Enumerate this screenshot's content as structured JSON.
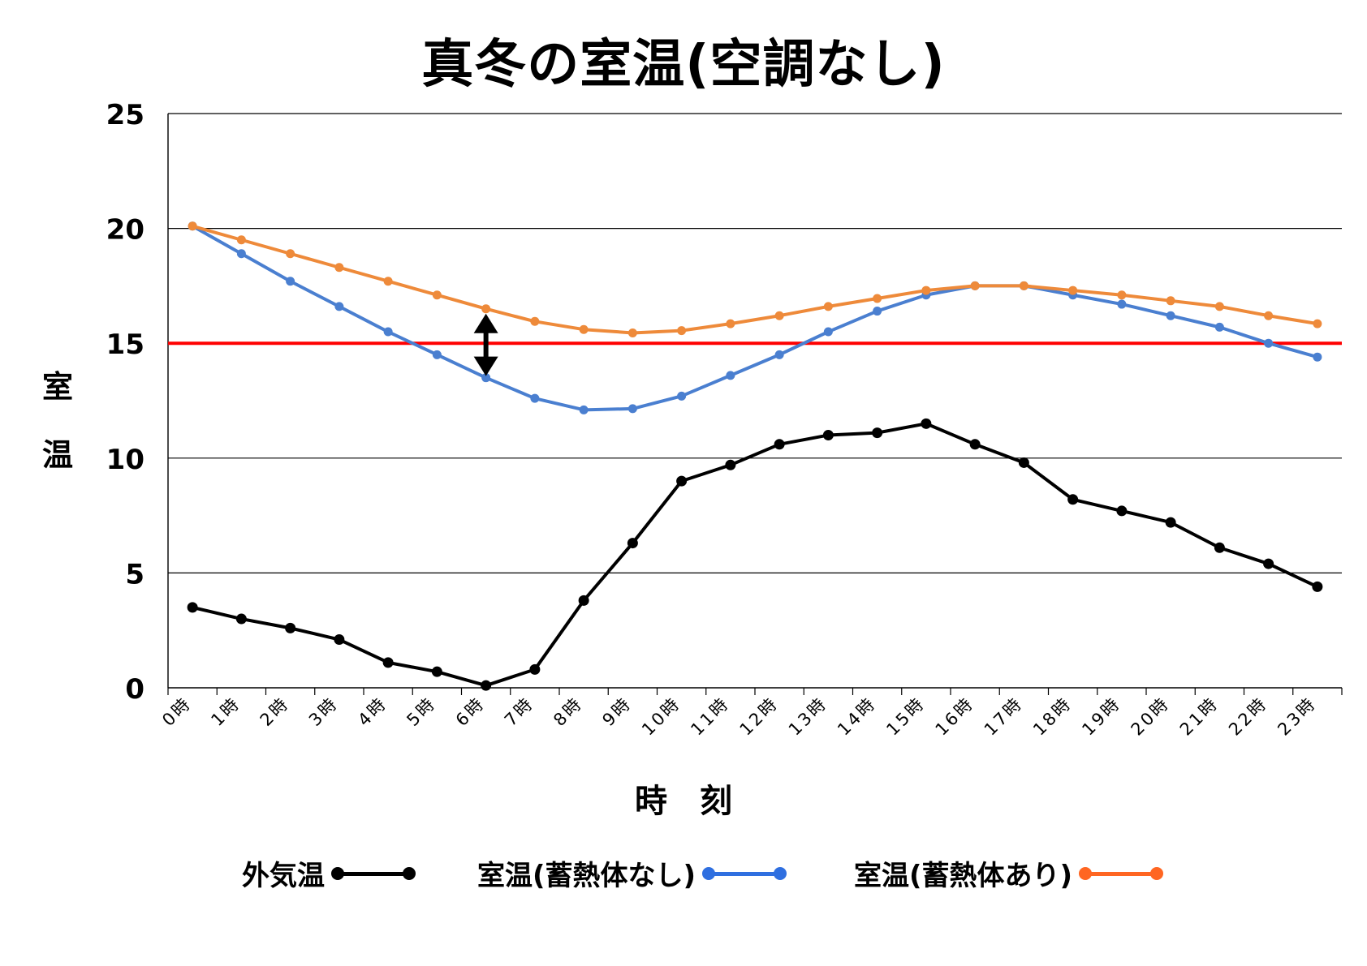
{
  "chart_data": {
    "type": "line",
    "title": "真冬の室温(空調なし)",
    "xlabel": "時　刻",
    "ylabel_chars": [
      "室",
      "温"
    ],
    "categories": [
      "0時",
      "1時",
      "2時",
      "3時",
      "4時",
      "5時",
      "6時",
      "7時",
      "8時",
      "9時",
      "10時",
      "11時",
      "12時",
      "13時",
      "14時",
      "15時",
      "16時",
      "17時",
      "18時",
      "19時",
      "20時",
      "21時",
      "22時",
      "23時"
    ],
    "ylim": [
      0,
      25
    ],
    "yticks": [
      "0",
      "5",
      "10",
      "15",
      "20",
      "25"
    ],
    "grid": "horizontal",
    "legend_position": "bottom",
    "reference_line": {
      "value": 15,
      "color": "#ff0000"
    },
    "annotation": {
      "type": "double-arrow",
      "category_index": 6,
      "from": 13.5,
      "to": 16.5
    },
    "series": [
      {
        "name": "外気温",
        "color": "#000000",
        "values": [
          3.5,
          3.0,
          2.6,
          2.1,
          1.1,
          0.7,
          0.1,
          0.8,
          3.8,
          6.3,
          9.0,
          9.7,
          10.6,
          11.0,
          11.1,
          11.5,
          10.6,
          9.8,
          8.2,
          7.7,
          7.2,
          6.1,
          5.4,
          4.4
        ]
      },
      {
        "name": "室温(蓄熱体なし)",
        "color": "#4a7fd0",
        "legend_color": "#2f6fe0",
        "values": [
          20.1,
          18.9,
          17.7,
          16.6,
          15.5,
          14.5,
          13.5,
          12.6,
          12.1,
          12.15,
          12.7,
          13.6,
          14.5,
          15.5,
          16.4,
          17.1,
          17.5,
          17.5,
          17.1,
          16.7,
          16.2,
          15.7,
          15.0,
          14.4
        ]
      },
      {
        "name": "室温(蓄熱体あり)",
        "color": "#ee8a3a",
        "legend_color": "#ff6622",
        "values": [
          20.1,
          19.5,
          18.9,
          18.3,
          17.7,
          17.1,
          16.5,
          15.95,
          15.6,
          15.45,
          15.55,
          15.85,
          16.2,
          16.6,
          16.95,
          17.3,
          17.5,
          17.5,
          17.3,
          17.1,
          16.85,
          16.6,
          16.2,
          15.85
        ]
      }
    ]
  }
}
